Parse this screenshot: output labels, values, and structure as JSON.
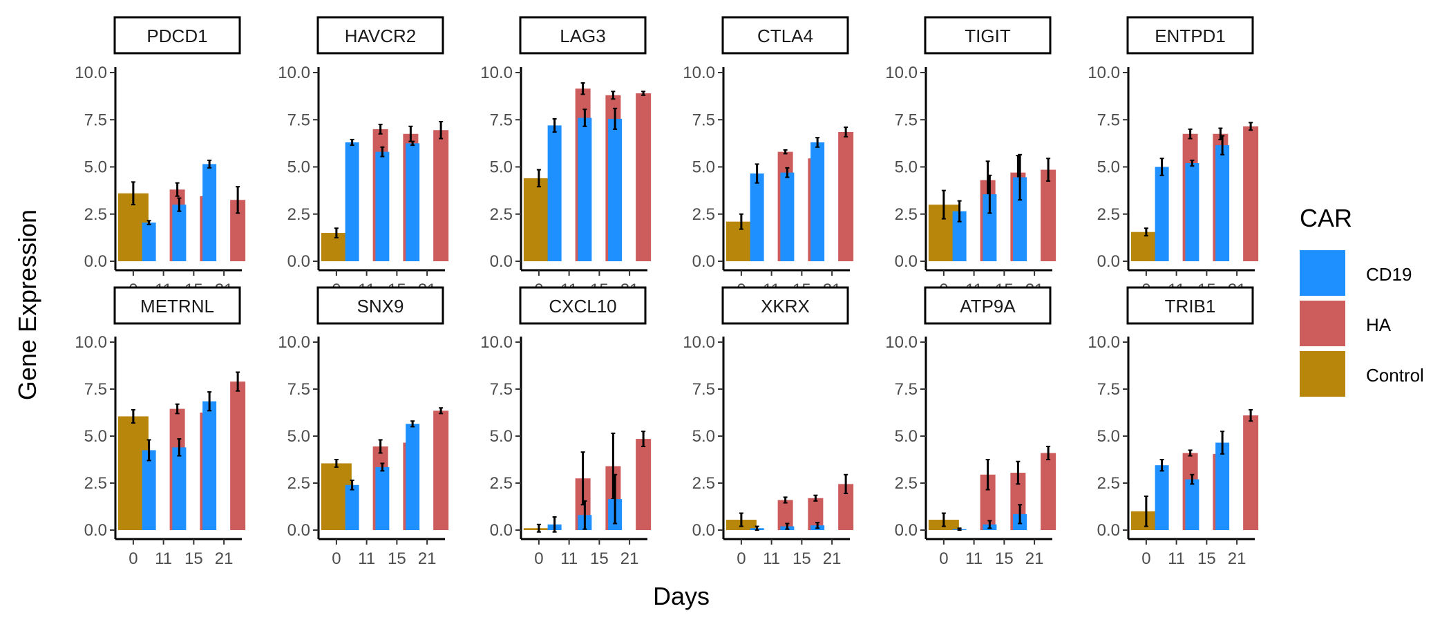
{
  "chart_data": {
    "type": "bar",
    "xlabel": "Days",
    "ylabel": "Gene Expression",
    "ylim": [
      0,
      10.8
    ],
    "yticks": [
      "0.0",
      "2.5",
      "5.0",
      "7.5",
      "10.0"
    ],
    "ytick_values": [
      0,
      2.5,
      5,
      7.5,
      10
    ],
    "x_categories": [
      "0",
      "11",
      "15",
      "21"
    ],
    "grid": false,
    "legend": {
      "title": "CAR",
      "placement": "right",
      "items": [
        {
          "label": "CD19",
          "color": "#1e90ff"
        },
        {
          "label": "HA",
          "color": "#cd5c5c"
        },
        {
          "label": "Control",
          "color": "#b8860b"
        }
      ]
    },
    "panels": [
      {
        "title": "PDCD1",
        "control": [
          3.6,
          0.6
        ],
        "cd19": [
          [
            2.05,
            0.1
          ],
          [
            3.0,
            0.35
          ],
          [
            5.15,
            0.2
          ]
        ],
        "ha": [
          [
            3.8,
            0.35
          ],
          [
            3.45,
            0.5
          ],
          [
            3.25,
            0.7
          ]
        ]
      },
      {
        "title": "HAVCR2",
        "control": [
          1.5,
          0.25
        ],
        "cd19": [
          [
            6.3,
            0.15
          ],
          [
            5.8,
            0.25
          ],
          [
            6.25,
            0.1
          ]
        ],
        "ha": [
          [
            7.0,
            0.25
          ],
          [
            6.75,
            0.4
          ],
          [
            6.95,
            0.45
          ]
        ]
      },
      {
        "title": "LAG3",
        "control": [
          4.4,
          0.45
        ],
        "cd19": [
          [
            7.2,
            0.35
          ],
          [
            7.6,
            0.45
          ],
          [
            7.55,
            0.55
          ]
        ],
        "ha": [
          [
            9.15,
            0.3
          ],
          [
            8.8,
            0.2
          ],
          [
            8.9,
            0.1
          ]
        ]
      },
      {
        "title": "CTLA4",
        "control": [
          2.1,
          0.4
        ],
        "cd19": [
          [
            4.65,
            0.5
          ],
          [
            4.7,
            0.25
          ],
          [
            6.3,
            0.25
          ]
        ],
        "ha": [
          [
            5.8,
            0.1
          ],
          [
            5.45,
            0.25
          ],
          [
            6.85,
            0.25
          ]
        ]
      },
      {
        "title": "TIGIT",
        "control": [
          3.0,
          0.75
        ],
        "cd19": [
          [
            2.65,
            0.55
          ],
          [
            3.55,
            1.0
          ],
          [
            4.45,
            1.2
          ]
        ],
        "ha": [
          [
            4.3,
            1.0
          ],
          [
            4.7,
            0.9
          ],
          [
            4.85,
            0.6
          ]
        ]
      },
      {
        "title": "ENTPD1",
        "control": [
          1.55,
          0.2
        ],
        "cd19": [
          [
            5.0,
            0.45
          ],
          [
            5.2,
            0.15
          ],
          [
            6.15,
            0.5
          ]
        ],
        "ha": [
          [
            6.75,
            0.25
          ],
          [
            6.75,
            0.3
          ],
          [
            7.15,
            0.2
          ]
        ]
      },
      {
        "title": "METRNL",
        "control": [
          6.05,
          0.35
        ],
        "cd19": [
          [
            4.25,
            0.55
          ],
          [
            4.4,
            0.45
          ],
          [
            6.85,
            0.5
          ]
        ],
        "ha": [
          [
            6.45,
            0.25
          ],
          [
            6.25,
            0.25
          ],
          [
            7.9,
            0.5
          ]
        ]
      },
      {
        "title": "SNX9",
        "control": [
          3.55,
          0.2
        ],
        "cd19": [
          [
            2.4,
            0.25
          ],
          [
            3.35,
            0.2
          ],
          [
            5.65,
            0.15
          ]
        ],
        "ha": [
          [
            4.45,
            0.35
          ],
          [
            4.65,
            0.15
          ],
          [
            6.35,
            0.15
          ]
        ]
      },
      {
        "title": "CXCL10",
        "control": [
          0.1,
          0.2
        ],
        "cd19": [
          [
            0.3,
            0.4
          ],
          [
            0.8,
            0.75
          ],
          [
            1.65,
            1.3
          ]
        ],
        "ha": [
          [
            2.75,
            1.4
          ],
          [
            3.4,
            1.75
          ],
          [
            4.85,
            0.4
          ]
        ]
      },
      {
        "title": "XKRX",
        "control": [
          0.55,
          0.35
        ],
        "cd19": [
          [
            0.1,
            0.1
          ],
          [
            0.2,
            0.15
          ],
          [
            0.25,
            0.15
          ]
        ],
        "ha": [
          [
            1.6,
            0.15
          ],
          [
            1.7,
            0.15
          ],
          [
            2.45,
            0.5
          ]
        ]
      },
      {
        "title": "ATP9A",
        "control": [
          0.55,
          0.35
        ],
        "cd19": [
          [
            0.05,
            0.05
          ],
          [
            0.3,
            0.2
          ],
          [
            0.85,
            0.5
          ]
        ],
        "ha": [
          [
            2.95,
            0.8
          ],
          [
            3.05,
            0.6
          ],
          [
            4.1,
            0.35
          ]
        ]
      },
      {
        "title": "TRIB1",
        "control": [
          1.0,
          0.8
        ],
        "cd19": [
          [
            3.45,
            0.3
          ],
          [
            2.7,
            0.25
          ],
          [
            4.65,
            0.6
          ]
        ],
        "ha": [
          [
            4.1,
            0.15
          ],
          [
            4.05,
            0.1
          ],
          [
            6.1,
            0.3
          ]
        ]
      }
    ]
  }
}
